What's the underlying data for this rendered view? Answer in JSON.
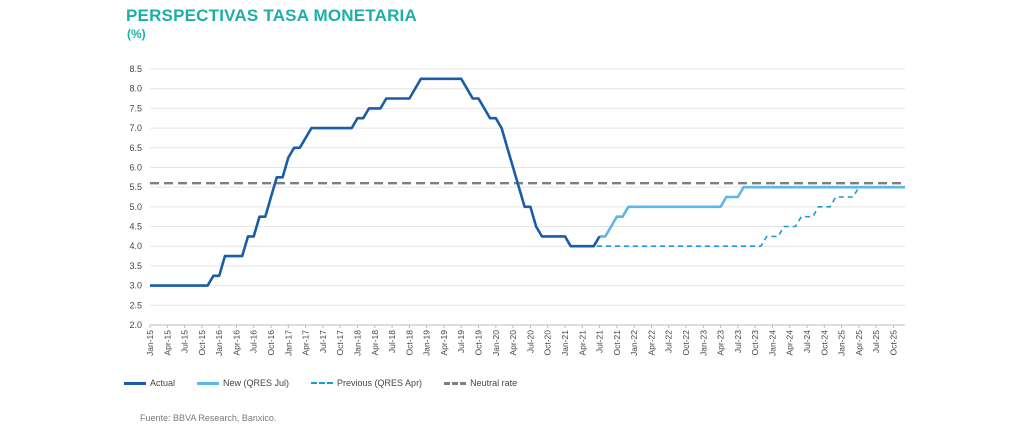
{
  "title": "PERSPECTIVAS TASA MONETARIA",
  "subtitle": "(%)",
  "source": "Fuente: BBVA Research, Banxico.",
  "colors": {
    "actual": "#1a5ca8",
    "new": "#5bb8ea",
    "previous": "#1a9ad6",
    "neutral": "#7f7f7f",
    "title": "#1bb0a6"
  },
  "chart_data": {
    "type": "line",
    "title": "PERSPECTIVAS TASA MONETARIA",
    "ylabel": "(%)",
    "ylim": [
      2.0,
      8.5
    ],
    "yticks": [
      "2.0",
      "2.5",
      "3.0",
      "3.5",
      "4.0",
      "4.5",
      "5.0",
      "5.5",
      "6.0",
      "6.5",
      "7.0",
      "7.5",
      "8.0",
      "8.5"
    ],
    "grid": "horizontal",
    "legend_position": "bottom",
    "x_start": "Jan-15",
    "x_end": "Dec-25",
    "x_ticks": [
      "Jan-15",
      "Apr-15",
      "Jul-15",
      "Oct-15",
      "Jan-16",
      "Apr-16",
      "Jul-16",
      "Oct-16",
      "Jan-17",
      "Apr-17",
      "Jul-17",
      "Oct-17",
      "Jan-18",
      "Apr-18",
      "Jul-18",
      "Oct-18",
      "Jan-19",
      "Apr-19",
      "Jul-19",
      "Oct-19",
      "Jan-20",
      "Apr-20",
      "Jul-20",
      "Oct-20",
      "Jan-21",
      "Apr-21",
      "Jul-21",
      "Oct-21",
      "Jan-22",
      "Apr-22",
      "Jul-22",
      "Oct-22",
      "Jan-23",
      "Apr-23",
      "Jul-23",
      "Oct-23",
      "Jan-24",
      "Apr-24",
      "Jul-24",
      "Oct-24",
      "Jan-25",
      "Apr-25",
      "Jul-25",
      "Oct-25"
    ],
    "series": [
      {
        "name": "Actual",
        "style": "solid",
        "points": [
          [
            "Jan-15",
            3.0
          ],
          [
            "Nov-15",
            3.0
          ],
          [
            "Dec-15",
            3.25
          ],
          [
            "Jan-16",
            3.25
          ],
          [
            "Feb-16",
            3.75
          ],
          [
            "May-16",
            3.75
          ],
          [
            "Jun-16",
            4.25
          ],
          [
            "Jul-16",
            4.25
          ],
          [
            "Aug-16",
            4.75
          ],
          [
            "Sep-16",
            4.75
          ],
          [
            "Oct-16",
            5.25
          ],
          [
            "Nov-16",
            5.75
          ],
          [
            "Dec-16",
            5.75
          ],
          [
            "Jan-17",
            6.25
          ],
          [
            "Feb-17",
            6.5
          ],
          [
            "Mar-17",
            6.5
          ],
          [
            "May-17",
            7.0
          ],
          [
            "Jun-17",
            7.0
          ],
          [
            "Dec-17",
            7.0
          ],
          [
            "Jan-18",
            7.25
          ],
          [
            "Feb-18",
            7.25
          ],
          [
            "Mar-18",
            7.5
          ],
          [
            "May-18",
            7.5
          ],
          [
            "Jun-18",
            7.75
          ],
          [
            "Oct-18",
            7.75
          ],
          [
            "Dec-18",
            8.25
          ],
          [
            "Jul-19",
            8.25
          ],
          [
            "Aug-19",
            8.0
          ],
          [
            "Sep-19",
            7.75
          ],
          [
            "Oct-19",
            7.75
          ],
          [
            "Nov-19",
            7.5
          ],
          [
            "Dec-19",
            7.25
          ],
          [
            "Jan-20",
            7.25
          ],
          [
            "Feb-20",
            7.0
          ],
          [
            "Mar-20",
            6.5
          ],
          [
            "Apr-20",
            6.0
          ],
          [
            "May-20",
            5.5
          ],
          [
            "Jun-20",
            5.0
          ],
          [
            "Jul-20",
            5.0
          ],
          [
            "Aug-20",
            4.5
          ],
          [
            "Sep-20",
            4.25
          ],
          [
            "Jan-21",
            4.25
          ],
          [
            "Feb-21",
            4.0
          ],
          [
            "Jun-21",
            4.0
          ],
          [
            "Jul-21",
            4.25
          ]
        ]
      },
      {
        "name": "New (QRES Jul)",
        "style": "solid",
        "points": [
          [
            "Jul-21",
            4.25
          ],
          [
            "Aug-21",
            4.25
          ],
          [
            "Sep-21",
            4.5
          ],
          [
            "Oct-21",
            4.75
          ],
          [
            "Nov-21",
            4.75
          ],
          [
            "Dec-21",
            5.0
          ],
          [
            "Apr-23",
            5.0
          ],
          [
            "May-23",
            5.25
          ],
          [
            "Jun-23",
            5.25
          ],
          [
            "Jul-23",
            5.25
          ],
          [
            "Aug-23",
            5.5
          ],
          [
            "Dec-25",
            5.5
          ]
        ]
      },
      {
        "name": "Previous (QRES Apr)",
        "style": "dashed",
        "points": [
          [
            "May-21",
            4.0
          ],
          [
            "Nov-23",
            4.0
          ],
          [
            "Dec-23",
            4.25
          ],
          [
            "Jan-24",
            4.25
          ],
          [
            "Feb-24",
            4.25
          ],
          [
            "Mar-24",
            4.5
          ],
          [
            "Apr-24",
            4.5
          ],
          [
            "May-24",
            4.5
          ],
          [
            "Jun-24",
            4.75
          ],
          [
            "Aug-24",
            4.75
          ],
          [
            "Sep-24",
            5.0
          ],
          [
            "Oct-24",
            5.0
          ],
          [
            "Nov-24",
            5.0
          ],
          [
            "Dec-24",
            5.25
          ],
          [
            "Mar-25",
            5.25
          ],
          [
            "Apr-25",
            5.5
          ],
          [
            "Dec-25",
            5.5
          ]
        ]
      },
      {
        "name": "Neutral rate",
        "style": "dashed",
        "points": [
          [
            "Jan-15",
            5.6
          ],
          [
            "Dec-25",
            5.6
          ]
        ]
      }
    ]
  }
}
